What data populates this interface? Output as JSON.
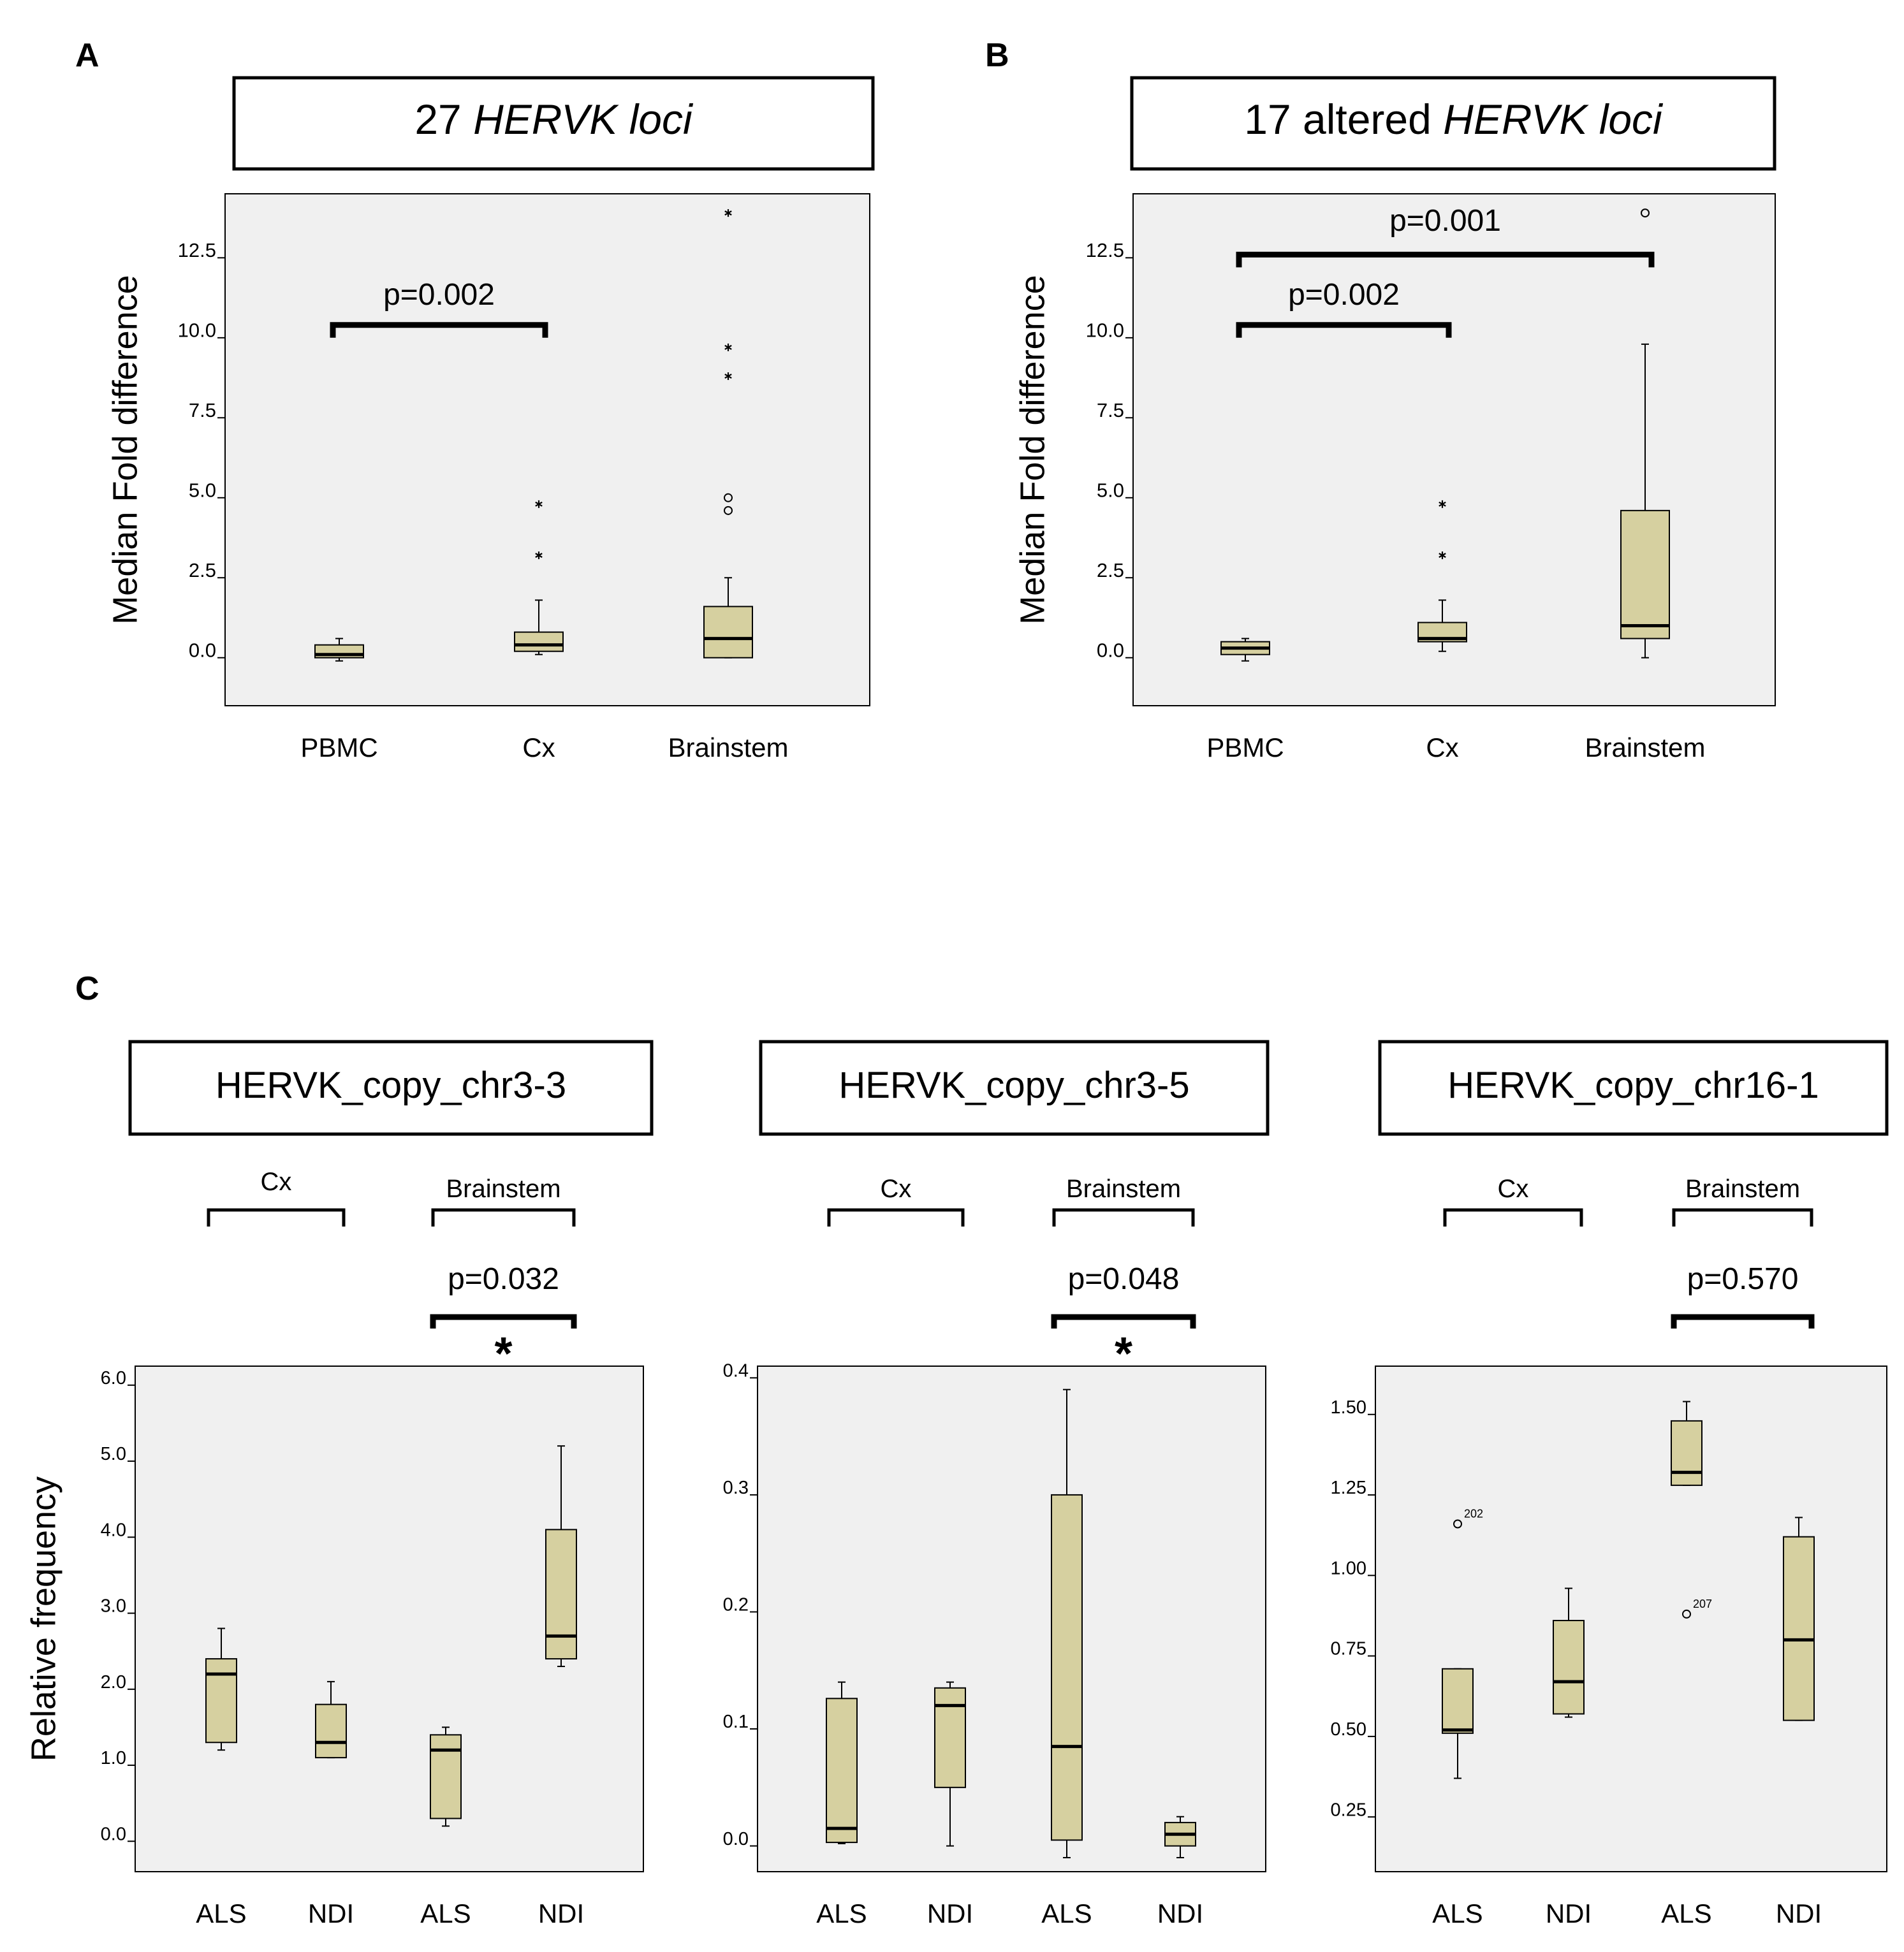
{
  "chart_data": [
    {
      "panel": "A",
      "type": "box",
      "title_parts": [
        {
          "text": "27 ",
          "italic": false
        },
        {
          "text": "HERVK loci",
          "italic": true
        }
      ],
      "ylabel": "Median Fold difference",
      "ylim": [
        -1.5,
        14.5
      ],
      "yticks": [
        0.0,
        2.5,
        5.0,
        7.5,
        10.0,
        12.5
      ],
      "ytick_labels": [
        "0.0",
        "2.5",
        "5.0",
        "7.5",
        "10.0",
        "12.5"
      ],
      "categories": [
        "PBMC",
        "Cx",
        "Brainstem"
      ],
      "boxes": [
        {
          "category": "PBMC",
          "whisker_low": -0.1,
          "q1": 0.0,
          "median": 0.1,
          "q3": 0.4,
          "whisker_high": 0.6,
          "outliers": []
        },
        {
          "category": "Cx",
          "whisker_low": 0.1,
          "q1": 0.2,
          "median": 0.4,
          "q3": 0.8,
          "whisker_high": 1.8,
          "outliers": [
            {
              "y": 3.2,
              "marker": "star"
            },
            {
              "y": 4.8,
              "marker": "star"
            }
          ]
        },
        {
          "category": "Brainstem",
          "whisker_low": 0.0,
          "q1": 0.0,
          "median": 0.6,
          "q3": 1.6,
          "whisker_high": 2.5,
          "outliers": [
            {
              "y": 4.6,
              "marker": "circle"
            },
            {
              "y": 5.0,
              "marker": "circle"
            },
            {
              "y": 8.8,
              "marker": "star"
            },
            {
              "y": 9.7,
              "marker": "star"
            },
            {
              "y": 13.9,
              "marker": "star"
            }
          ]
        }
      ],
      "comparisons": [
        {
          "from": "PBMC",
          "to": "Cx",
          "y": 10.4,
          "label": "p=0.002"
        }
      ]
    },
    {
      "panel": "B",
      "type": "box",
      "title_parts": [
        {
          "text": "17 altered ",
          "italic": false
        },
        {
          "text": "HERVK loci",
          "italic": true
        }
      ],
      "ylabel": "Median Fold difference",
      "ylim": [
        -1.5,
        14.5
      ],
      "yticks": [
        0.0,
        2.5,
        5.0,
        7.5,
        10.0,
        12.5
      ],
      "ytick_labels": [
        "0.0",
        "2.5",
        "5.0",
        "7.5",
        "10.0",
        "12.5"
      ],
      "categories": [
        "PBMC",
        "Cx",
        "Brainstem"
      ],
      "boxes": [
        {
          "category": "PBMC",
          "whisker_low": -0.1,
          "q1": 0.1,
          "median": 0.3,
          "q3": 0.5,
          "whisker_high": 0.6,
          "outliers": []
        },
        {
          "category": "Cx",
          "whisker_low": 0.2,
          "q1": 0.5,
          "median": 0.6,
          "q3": 1.1,
          "whisker_high": 1.8,
          "outliers": [
            {
              "y": 3.2,
              "marker": "star"
            },
            {
              "y": 4.8,
              "marker": "star"
            }
          ]
        },
        {
          "category": "Brainstem",
          "whisker_low": 0.0,
          "q1": 0.6,
          "median": 1.0,
          "q3": 4.6,
          "whisker_high": 9.8,
          "outliers": [
            {
              "y": 13.9,
              "marker": "circle"
            }
          ]
        }
      ],
      "comparisons": [
        {
          "from": "PBMC",
          "to": "Cx",
          "y": 10.4,
          "label": "p=0.002"
        },
        {
          "from": "PBMC",
          "to": "Brainstem",
          "y": 12.6,
          "label": "p=0.001"
        }
      ]
    },
    {
      "panel": "C",
      "type": "box",
      "title_parts": [
        {
          "text": "HERVK_copy_chr3-3",
          "italic": false
        }
      ],
      "ylabel": "Relative frequency",
      "ylim": [
        -0.4,
        6.25
      ],
      "yticks": [
        0.0,
        1.0,
        2.0,
        3.0,
        4.0,
        5.0,
        6.0
      ],
      "ytick_labels": [
        "0.0",
        "1.0",
        "2.0",
        "3.0",
        "4.0",
        "5.0",
        "6.0"
      ],
      "categories": [
        "ALS",
        "NDI",
        "ALS",
        "NDI"
      ],
      "groups": [
        {
          "label": "Cx",
          "from": 0,
          "to": 1
        },
        {
          "label": "Brainstem",
          "from": 2,
          "to": 3
        }
      ],
      "boxes": [
        {
          "category": "ALS",
          "whisker_low": 1.2,
          "q1": 1.3,
          "median": 2.2,
          "q3": 2.4,
          "whisker_high": 2.8,
          "outliers": []
        },
        {
          "category": "NDI",
          "whisker_low": 1.1,
          "q1": 1.1,
          "median": 1.3,
          "q3": 1.8,
          "whisker_high": 2.1,
          "outliers": []
        },
        {
          "category": "ALS",
          "whisker_low": 0.2,
          "q1": 0.3,
          "median": 1.2,
          "q3": 1.4,
          "whisker_high": 1.5,
          "outliers": []
        },
        {
          "category": "NDI",
          "whisker_low": 2.3,
          "q1": 2.4,
          "median": 2.7,
          "q3": 4.1,
          "whisker_high": 5.2,
          "outliers": []
        }
      ],
      "comparison": {
        "label": "p=0.032",
        "marker": "*"
      }
    },
    {
      "panel": "C",
      "type": "box",
      "title_parts": [
        {
          "text": "HERVK_copy_chr3-5",
          "italic": false
        }
      ],
      "ylabel": "",
      "ylim": [
        -0.022,
        0.41
      ],
      "yticks": [
        0.0,
        0.1,
        0.2,
        0.3,
        0.4
      ],
      "ytick_labels": [
        "0.0",
        "0.1",
        "0.2",
        "0.3",
        "0.4"
      ],
      "categories": [
        "ALS",
        "NDI",
        "ALS",
        "NDI"
      ],
      "groups": [
        {
          "label": "Cx",
          "from": 0,
          "to": 1
        },
        {
          "label": "Brainstem",
          "from": 2,
          "to": 3
        }
      ],
      "boxes": [
        {
          "category": "ALS",
          "whisker_low": 0.002,
          "q1": 0.003,
          "median": 0.015,
          "q3": 0.126,
          "whisker_high": 0.14,
          "outliers": []
        },
        {
          "category": "NDI",
          "whisker_low": 0.0,
          "q1": 0.05,
          "median": 0.12,
          "q3": 0.135,
          "whisker_high": 0.14,
          "outliers": []
        },
        {
          "category": "ALS",
          "whisker_low": -0.01,
          "q1": 0.005,
          "median": 0.085,
          "q3": 0.3,
          "whisker_high": 0.39,
          "outliers": []
        },
        {
          "category": "NDI",
          "whisker_low": -0.01,
          "q1": 0.0,
          "median": 0.01,
          "q3": 0.02,
          "whisker_high": 0.025,
          "outliers": []
        }
      ],
      "comparison": {
        "label": "p=0.048",
        "marker": "*"
      }
    },
    {
      "panel": "C",
      "type": "box",
      "title_parts": [
        {
          "text": "HERVK_copy_chr16-1",
          "italic": false
        }
      ],
      "ylabel": "",
      "ylim": [
        0.08,
        1.65
      ],
      "yticks": [
        0.25,
        0.5,
        0.75,
        1.0,
        1.25,
        1.5
      ],
      "ytick_labels": [
        "0.25",
        "0.50",
        "0.75",
        "1.00",
        "1.25",
        "1.50"
      ],
      "categories": [
        "ALS",
        "NDI",
        "ALS",
        "NDI"
      ],
      "groups": [
        {
          "label": "Cx",
          "from": 0,
          "to": 1
        },
        {
          "label": "Brainstem",
          "from": 2,
          "to": 3
        }
      ],
      "boxes": [
        {
          "category": "ALS",
          "whisker_low": 0.37,
          "q1": 0.51,
          "median": 0.52,
          "q3": 0.71,
          "whisker_high": 0.71,
          "outliers": [
            {
              "y": 1.16,
              "marker": "circle",
              "label": "202"
            }
          ]
        },
        {
          "category": "NDI",
          "whisker_low": 0.56,
          "q1": 0.57,
          "median": 0.67,
          "q3": 0.86,
          "whisker_high": 0.96,
          "outliers": []
        },
        {
          "category": "ALS",
          "whisker_low": 1.28,
          "q1": 1.28,
          "median": 1.32,
          "q3": 1.48,
          "whisker_high": 1.54,
          "outliers": [
            {
              "y": 0.88,
              "marker": "circle",
              "label": "207"
            }
          ]
        },
        {
          "category": "NDI",
          "whisker_low": 0.55,
          "q1": 0.55,
          "median": 0.8,
          "q3": 1.12,
          "whisker_high": 1.18,
          "outliers": []
        }
      ],
      "comparison": {
        "label": "p=0.570",
        "marker": ""
      }
    }
  ],
  "panel_labels": {
    "a": "A",
    "b": "B",
    "c": "C"
  },
  "colors": {
    "box_fill": "#d6d0a0",
    "plot_bg": "#f0f0f0",
    "line": "#000000"
  }
}
